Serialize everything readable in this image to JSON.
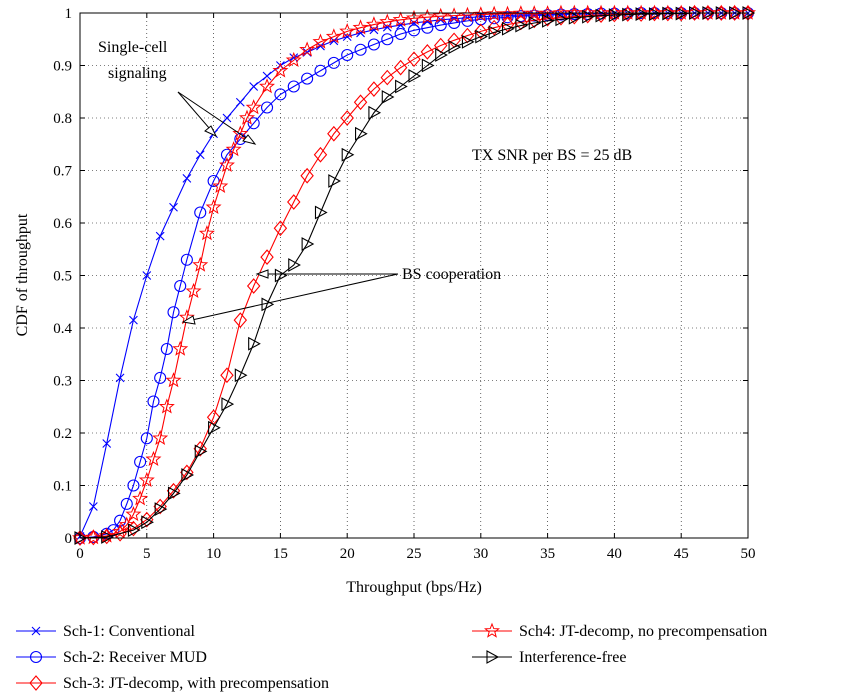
{
  "chart_data": {
    "type": "line",
    "title": "",
    "xlabel": "Throughput (bps/Hz)",
    "ylabel": "CDF of throughput",
    "xlim": [
      0,
      50
    ],
    "ylim": [
      0,
      1
    ],
    "xticks": [
      "0",
      "5",
      "10",
      "15",
      "20",
      "25",
      "30",
      "35",
      "40",
      "45",
      "50"
    ],
    "yticks": [
      "0",
      "0.1",
      "0.2",
      "0.3",
      "0.4",
      "0.5",
      "0.6",
      "0.7",
      "0.8",
      "0.9",
      "1"
    ],
    "grid": true,
    "legend_position": "bottom",
    "annotations": {
      "single_cell": [
        "Single-cell",
        "signaling"
      ],
      "bs_coop": "BS cooperation",
      "snr": "TX SNR per BS = 25 dB"
    },
    "series": [
      {
        "name": "Sch-1: Conventional",
        "color": "#0000ff",
        "marker": "x",
        "x": [
          0,
          1,
          2,
          3,
          4,
          5,
          6,
          7,
          8,
          9,
          10,
          11,
          12,
          13,
          14,
          15,
          16,
          17,
          18,
          19,
          20,
          21,
          22,
          23,
          24,
          25,
          26,
          27,
          28,
          29,
          30,
          31,
          32,
          33,
          34,
          35,
          36,
          37,
          38,
          39,
          40,
          41,
          42,
          43,
          44,
          45,
          46,
          47,
          48,
          49,
          50
        ],
        "y": [
          0.003,
          0.06,
          0.18,
          0.305,
          0.415,
          0.5,
          0.575,
          0.63,
          0.685,
          0.73,
          0.77,
          0.8,
          0.83,
          0.86,
          0.88,
          0.9,
          0.915,
          0.925,
          0.937,
          0.947,
          0.955,
          0.962,
          0.968,
          0.973,
          0.977,
          0.981,
          0.984,
          0.987,
          0.989,
          0.991,
          0.993,
          0.994,
          0.995,
          0.996,
          0.997,
          0.997,
          0.998,
          0.998,
          0.999,
          0.999,
          0.999,
          0.999,
          1,
          1,
          1,
          1,
          1,
          1,
          1,
          1,
          1
        ]
      },
      {
        "name": "Sch-2: Receiver MUD",
        "color": "#0000ff",
        "marker": "o",
        "x": [
          0,
          1,
          2,
          2.5,
          3,
          3.5,
          4,
          4.5,
          5,
          5.5,
          6,
          6.5,
          7,
          7.5,
          8,
          9,
          10,
          11,
          12,
          13,
          14,
          15,
          16,
          17,
          18,
          19,
          20,
          21,
          22,
          23,
          24,
          25,
          26,
          27,
          28,
          29,
          30,
          31,
          32,
          33,
          34,
          35,
          36,
          37,
          38,
          39,
          40,
          41,
          42,
          43,
          44,
          45,
          46,
          47,
          48,
          49,
          50
        ],
        "y": [
          0,
          0.002,
          0.008,
          0.015,
          0.033,
          0.065,
          0.1,
          0.145,
          0.19,
          0.26,
          0.305,
          0.36,
          0.43,
          0.48,
          0.53,
          0.62,
          0.68,
          0.73,
          0.76,
          0.79,
          0.82,
          0.845,
          0.86,
          0.875,
          0.89,
          0.905,
          0.92,
          0.93,
          0.94,
          0.95,
          0.96,
          0.967,
          0.972,
          0.977,
          0.981,
          0.985,
          0.988,
          0.99,
          0.992,
          0.994,
          0.995,
          0.996,
          0.997,
          0.998,
          0.998,
          0.999,
          0.999,
          0.999,
          1,
          1,
          1,
          1,
          1,
          1,
          1,
          1,
          1
        ]
      },
      {
        "name": "Sch-3: JT-decomp, with precompensation",
        "color": "#ff0000",
        "marker": "diamond",
        "x": [
          0,
          1,
          2,
          3,
          4,
          5,
          6,
          7,
          8,
          9,
          10,
          11,
          12,
          13,
          14,
          15,
          16,
          17,
          18,
          19,
          20,
          21,
          22,
          23,
          24,
          25,
          26,
          27,
          28,
          29,
          30,
          31,
          32,
          33,
          34,
          35,
          36,
          37,
          38,
          39,
          40,
          41,
          42,
          43,
          44,
          45,
          46,
          47,
          48,
          49,
          50
        ],
        "y": [
          0,
          0.001,
          0.003,
          0.008,
          0.018,
          0.035,
          0.06,
          0.09,
          0.125,
          0.17,
          0.23,
          0.31,
          0.415,
          0.48,
          0.535,
          0.59,
          0.64,
          0.69,
          0.73,
          0.77,
          0.8,
          0.83,
          0.855,
          0.877,
          0.896,
          0.912,
          0.926,
          0.938,
          0.948,
          0.957,
          0.965,
          0.972,
          0.978,
          0.982,
          0.986,
          0.989,
          0.991,
          0.993,
          0.995,
          0.996,
          0.997,
          0.998,
          0.998,
          0.999,
          0.999,
          0.999,
          1,
          1,
          1,
          1,
          1
        ]
      },
      {
        "name": "Sch4: JT-decomp, no precompensation",
        "color": "#ff0000",
        "marker": "star",
        "x": [
          0,
          1,
          2,
          3,
          3.5,
          4,
          4.5,
          5,
          5.5,
          6,
          6.5,
          7,
          7.5,
          8,
          8.5,
          9,
          9.5,
          10,
          10.5,
          11,
          11.5,
          12,
          12.5,
          13,
          14,
          15,
          16,
          17,
          18,
          19,
          20,
          21,
          22,
          23,
          24,
          25,
          26,
          27,
          28,
          29,
          30,
          31,
          32,
          33,
          34,
          35,
          36,
          37,
          38,
          39,
          40,
          41,
          42,
          43,
          44,
          45,
          46,
          47,
          48,
          49,
          50
        ],
        "y": [
          0,
          0.001,
          0.004,
          0.012,
          0.025,
          0.045,
          0.075,
          0.11,
          0.15,
          0.19,
          0.25,
          0.3,
          0.36,
          0.42,
          0.47,
          0.52,
          0.58,
          0.63,
          0.67,
          0.71,
          0.74,
          0.77,
          0.8,
          0.82,
          0.86,
          0.89,
          0.91,
          0.93,
          0.945,
          0.955,
          0.965,
          0.972,
          0.978,
          0.983,
          0.987,
          0.99,
          0.992,
          0.994,
          0.995,
          0.996,
          0.997,
          0.998,
          0.998,
          0.999,
          0.999,
          0.999,
          1,
          1,
          1,
          1,
          1,
          1,
          1,
          1,
          1,
          1,
          1,
          1,
          1,
          1,
          1
        ]
      },
      {
        "name": "Interference-free",
        "color": "#000000",
        "marker": "triangle-right",
        "x": [
          0,
          2,
          4,
          5,
          6,
          7,
          8,
          9,
          10,
          11,
          12,
          13,
          14,
          15,
          16,
          17,
          18,
          19,
          20,
          21,
          22,
          23,
          24,
          25,
          26,
          27,
          28,
          29,
          30,
          31,
          32,
          33,
          34,
          35,
          36,
          37,
          38,
          39,
          40,
          41,
          42,
          43,
          44,
          45,
          46,
          47,
          48,
          49,
          50
        ],
        "y": [
          0,
          0.002,
          0.015,
          0.03,
          0.055,
          0.085,
          0.12,
          0.165,
          0.21,
          0.255,
          0.31,
          0.37,
          0.445,
          0.5,
          0.52,
          0.56,
          0.62,
          0.68,
          0.73,
          0.77,
          0.81,
          0.84,
          0.86,
          0.88,
          0.9,
          0.92,
          0.935,
          0.945,
          0.955,
          0.963,
          0.97,
          0.976,
          0.981,
          0.985,
          0.988,
          0.991,
          0.993,
          0.995,
          0.996,
          0.997,
          0.998,
          0.998,
          0.999,
          0.999,
          1,
          1,
          1,
          1,
          1
        ]
      }
    ]
  }
}
